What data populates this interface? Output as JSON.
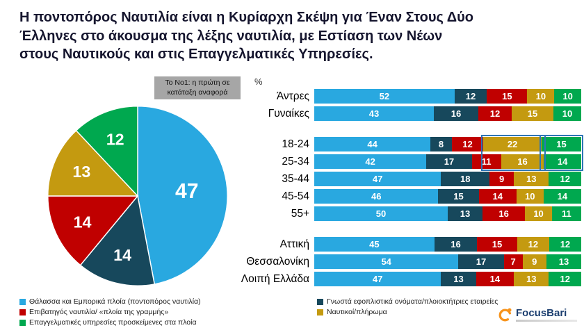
{
  "title": "Η ποντοπόρος Ναυτιλία είναι η Κυρίαρχη Σκέψη για Έναν Στους Δύο Έλληνες στο άκουσμα της λέξης ναυτιλία, με Εστίαση των Νέων στους Ναυτικούς και στις Επαγγελματικές Υπηρεσίες.",
  "note_box": "Το Νο1: η πρώτη σε κατάταξη αναφορά",
  "unit_label": "%",
  "colors": {
    "sea_blue": "#29A8E0",
    "dark_teal": "#17485C",
    "red": "#C00000",
    "gold": "#C49A10",
    "green": "#00A84F",
    "highlight_border": "#2E75B6",
    "note_bg": "#A6A6A6",
    "logo_orange": "#F7941D",
    "logo_blue": "#1B3E6F"
  },
  "series": [
    {
      "name": "Θάλασσα και Εμπορικά πλοία (ποντοπόρος ναυτιλία)",
      "color": "#29A8E0"
    },
    {
      "name": "Γνωστά εφοπλιστικά ονόματα/πλοιοκτήτριες εταιρείες",
      "color": "#17485C"
    },
    {
      "name": "Επιβατηγός ναυτιλία/ «πλοία της γραμμής»",
      "color": "#C00000"
    },
    {
      "name": "Ναυτικοί/πλήρωμα",
      "color": "#C49A10"
    },
    {
      "name": "Επαγγελματικές υπηρεσίες προσκείμενες στα πλοία",
      "color": "#00A84F"
    }
  ],
  "legend": {
    "columns": [
      [
        0,
        2,
        4
      ],
      [
        1,
        3
      ]
    ]
  },
  "logo": {
    "text": "FocusBari"
  },
  "chart_data": [
    {
      "type": "pie",
      "labels": [
        "Θάλασσα και Εμπορικά πλοία (ποντοπόρος ναυτιλία)",
        "Γνωστά εφοπλιστικά ονόματα/πλοιοκτήτριες εταιρείες",
        "Επιβατηγός ναυτιλία/ «πλοία της γραμμής»",
        "Ναυτικοί/πλήρωμα",
        "Επαγγελματικές υπηρεσίες προσκείμενες στα πλοία"
      ],
      "values": [
        47,
        14,
        14,
        13,
        12
      ],
      "colors": [
        "#29A8E0",
        "#17485C",
        "#C00000",
        "#C49A10",
        "#00A84F"
      ],
      "start_angle_deg": 0,
      "direction": "clockwise",
      "value_labels_in_slices": true
    },
    {
      "type": "bar",
      "variant": "horizontal-stacked",
      "unit": "%",
      "series": [
        "Θάλασσα και Εμπορικά πλοία (ποντοπόρος ναυτιλία)",
        "Γνωστά εφοπλιστικά ονόματα/πλοιοκτήτριες εταιρείες",
        "Επιβατηγός ναυτιλία/ «πλοία της γραμμής»",
        "Ναυτικοί/πλήρωμα",
        "Επαγγελματικές υπηρεσίες προσκείμενες στα πλοία"
      ],
      "groups": [
        {
          "id": "gender",
          "rows": [
            {
              "label": "Άντρες",
              "values": [
                52,
                12,
                15,
                10,
                10
              ]
            },
            {
              "label": "Γυναίκες",
              "values": [
                43,
                16,
                12,
                15,
                10
              ]
            }
          ]
        },
        {
          "id": "age",
          "rows": [
            {
              "label": "18-24",
              "values": [
                44,
                8,
                12,
                22,
                15
              ]
            },
            {
              "label": "25-34",
              "values": [
                42,
                17,
                11,
                16,
                14
              ]
            },
            {
              "label": "35-44",
              "values": [
                47,
                18,
                9,
                13,
                12
              ]
            },
            {
              "label": "45-54",
              "values": [
                46,
                15,
                14,
                10,
                14
              ]
            },
            {
              "label": "55+",
              "values": [
                50,
                13,
                16,
                10,
                11
              ]
            }
          ]
        },
        {
          "id": "region",
          "rows": [
            {
              "label": "Αττική",
              "values": [
                45,
                16,
                15,
                12,
                12
              ]
            },
            {
              "label": "Θεσσαλονίκη",
              "values": [
                54,
                17,
                7,
                9,
                13
              ]
            },
            {
              "label": "Λοιπή Ελλάδα",
              "values": [
                47,
                13,
                14,
                13,
                12
              ]
            }
          ]
        }
      ],
      "highlights": [
        {
          "rows": [
            "18-24",
            "25-34"
          ],
          "series_index": 3
        },
        {
          "rows": [
            "18-24",
            "25-34"
          ],
          "series_index": 4
        }
      ]
    }
  ]
}
